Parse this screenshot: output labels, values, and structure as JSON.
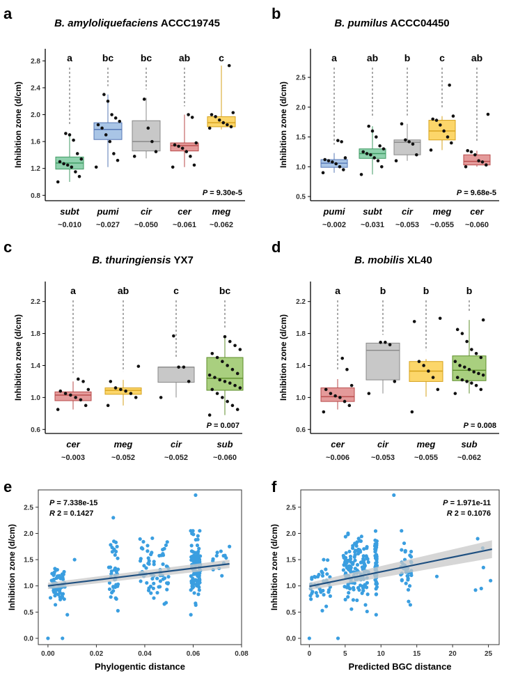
{
  "chart_data": [
    {
      "panel": "a",
      "type": "box",
      "title_italic": "B. amyloliquefaciens",
      "title_plain": "ACCC19745",
      "ylabel": "Inhibition zone (d/cm)",
      "ylim": [
        0.72,
        2.98
      ],
      "yticks": [
        0.8,
        1.2,
        1.6,
        2.0,
        2.4,
        2.8
      ],
      "ytick_labels": [
        "0.8",
        "1.2",
        "1.6",
        "2.0",
        "2.4",
        "2.8"
      ],
      "p_label": "P",
      "p_value": " = 9.30e-5",
      "series": [
        {
          "name": "subt",
          "distance": "~0.010",
          "letter": "a",
          "color": "#8fd1ad",
          "line": "#3f9a63",
          "q1": 1.19,
          "median": 1.28,
          "q3": 1.37,
          "wlo": 1.0,
          "whi": 1.72,
          "points": [
            1.0,
            1.08,
            1.15,
            1.22,
            1.25,
            1.27,
            1.3,
            1.34,
            1.42,
            1.62,
            1.7,
            1.72
          ]
        },
        {
          "name": "pumi",
          "distance": "~0.027",
          "letter": "bc",
          "color": "#a9c5e6",
          "line": "#5577b6",
          "q1": 1.63,
          "median": 1.78,
          "q3": 1.88,
          "wlo": 1.22,
          "whi": 2.3,
          "points": [
            1.22,
            1.32,
            1.42,
            1.6,
            1.7,
            1.8,
            1.85,
            1.9,
            1.95,
            2.0,
            2.2,
            2.3
          ]
        },
        {
          "name": "cir",
          "distance": "~0.050",
          "letter": "bc",
          "color": "#c8c8c8",
          "line": "#888888",
          "q1": 1.46,
          "median": 1.6,
          "q3": 1.91,
          "wlo": 1.35,
          "whi": 2.25,
          "points": [
            1.38,
            1.45,
            1.6,
            1.8,
            2.23
          ]
        },
        {
          "name": "cer",
          "distance": "~0.061",
          "letter": "ab",
          "color": "#e49a9a",
          "line": "#b84a4a",
          "q1": 1.46,
          "median": 1.54,
          "q3": 1.58,
          "wlo": 1.22,
          "whi": 2.0,
          "points": [
            1.22,
            1.25,
            1.38,
            1.45,
            1.5,
            1.53,
            1.55,
            1.58,
            1.96,
            2.0
          ]
        },
        {
          "name": "meg",
          "distance": "~0.062",
          "letter": "c",
          "color": "#fcd66a",
          "line": "#d6a11a",
          "q1": 1.82,
          "median": 1.88,
          "q3": 1.97,
          "wlo": 1.78,
          "whi": 2.73,
          "points": [
            1.8,
            1.82,
            1.85,
            1.88,
            1.92,
            1.97,
            2.0,
            2.03,
            2.73
          ]
        }
      ]
    },
    {
      "panel": "b",
      "type": "box",
      "title_italic": "B. pumilus",
      "title_plain": "ACCC04450",
      "ylabel": "Inhibition zone (d/cm)",
      "ylim": [
        0.43,
        2.98
      ],
      "yticks": [
        0.5,
        1.0,
        1.5,
        2.0,
        2.5
      ],
      "ytick_labels": [
        "0.5",
        "1.0",
        "1.5",
        "2.0",
        "2.5"
      ],
      "p_label": "P",
      "p_value": " = 9.68e-5",
      "series": [
        {
          "name": "pumi",
          "distance": "~0.002",
          "letter": "a",
          "color": "#a9c5e6",
          "line": "#5577b6",
          "q1": 0.99,
          "median": 1.06,
          "q3": 1.12,
          "wlo": 0.9,
          "whi": 1.23,
          "points": [
            0.9,
            0.95,
            1.0,
            1.05,
            1.08,
            1.1,
            1.12,
            1.15,
            1.42,
            1.44
          ]
        },
        {
          "name": "subt",
          "distance": "~0.031",
          "letter": "ab",
          "color": "#8fd1ad",
          "line": "#3f9a63",
          "q1": 1.14,
          "median": 1.22,
          "q3": 1.3,
          "wlo": 0.87,
          "whi": 1.68,
          "points": [
            0.87,
            1.0,
            1.1,
            1.15,
            1.2,
            1.22,
            1.25,
            1.3,
            1.35,
            1.5,
            1.6,
            1.68
          ]
        },
        {
          "name": "cir",
          "distance": "~0.053",
          "letter": "b",
          "color": "#c8c8c8",
          "line": "#888888",
          "q1": 1.2,
          "median": 1.41,
          "q3": 1.45,
          "wlo": 1.1,
          "whi": 1.72,
          "points": [
            1.1,
            1.2,
            1.38,
            1.42,
            1.45,
            1.72
          ]
        },
        {
          "name": "meg",
          "distance": "~0.055",
          "letter": "c",
          "color": "#fcd66a",
          "line": "#d6a11a",
          "q1": 1.45,
          "median": 1.6,
          "q3": 1.78,
          "wlo": 1.28,
          "whi": 1.85,
          "points": [
            1.28,
            1.4,
            1.5,
            1.6,
            1.7,
            1.78,
            1.8,
            1.85,
            2.37
          ]
        },
        {
          "name": "cer",
          "distance": "~0.060",
          "letter": "ab",
          "color": "#e49a9a",
          "line": "#b84a4a",
          "q1": 1.03,
          "median": 1.09,
          "q3": 1.2,
          "wlo": 1.0,
          "whi": 1.27,
          "points": [
            1.0,
            1.03,
            1.08,
            1.1,
            1.2,
            1.25,
            1.27,
            1.88
          ]
        }
      ]
    },
    {
      "panel": "c",
      "type": "box",
      "title_italic": "B. thuringiensis",
      "title_plain": "YX7",
      "ylabel": "Inhibition zone (d/cm)",
      "ylim": [
        0.55,
        2.45
      ],
      "yticks": [
        0.6,
        1.0,
        1.4,
        1.8,
        2.2
      ],
      "ytick_labels": [
        "0.6",
        "1.0",
        "1.4",
        "1.8",
        "2.2"
      ],
      "p_label": "P",
      "p_value": " = 0.007",
      "series": [
        {
          "name": "cer",
          "distance": "~0.003",
          "letter": "a",
          "color": "#e49a9a",
          "line": "#b84a4a",
          "q1": 0.96,
          "median": 1.03,
          "q3": 1.07,
          "wlo": 0.85,
          "whi": 1.2,
          "points": [
            0.85,
            0.9,
            0.97,
            1.0,
            1.03,
            1.05,
            1.08,
            1.1,
            1.2,
            1.23
          ]
        },
        {
          "name": "meg",
          "distance": "~0.052",
          "letter": "ab",
          "color": "#fcd66a",
          "line": "#d6a11a",
          "q1": 1.04,
          "median": 1.09,
          "q3": 1.12,
          "wlo": 0.9,
          "whi": 1.22,
          "points": [
            0.9,
            1.0,
            1.05,
            1.08,
            1.1,
            1.12,
            1.2,
            1.39
          ]
        },
        {
          "name": "cir",
          "distance": "~0.052",
          "letter": "c",
          "color": "#c8c8c8",
          "line": "#888888",
          "q1": 1.19,
          "median": 1.38,
          "q3": 1.38,
          "wlo": 1.0,
          "whi": 1.38,
          "points": [
            1.0,
            1.2,
            1.38,
            1.38,
            1.77
          ]
        },
        {
          "name": "sub",
          "distance": "~0.060",
          "letter": "bc",
          "color": "#a9cf7f",
          "line": "#5d8e2a",
          "q1": 1.09,
          "median": 1.24,
          "q3": 1.5,
          "wlo": 0.78,
          "whi": 1.76,
          "points": [
            0.78,
            0.85,
            0.9,
            0.95,
            1.0,
            1.05,
            1.1,
            1.12,
            1.15,
            1.18,
            1.2,
            1.22,
            1.25,
            1.28,
            1.3,
            1.35,
            1.4,
            1.45,
            1.5,
            1.55,
            1.6,
            1.65,
            1.7,
            1.76
          ]
        }
      ]
    },
    {
      "panel": "d",
      "type": "box",
      "title_italic": "B. mobilis",
      "title_plain": "XL40",
      "ylabel": "Inhibition zone (d/cm)",
      "ylim": [
        0.55,
        2.45
      ],
      "yticks": [
        0.6,
        1.0,
        1.4,
        1.8,
        2.2
      ],
      "ytick_labels": [
        "0.6",
        "1.0",
        "1.4",
        "1.8",
        "2.2"
      ],
      "p_label": "P",
      "p_value": " = 0.008",
      "series": [
        {
          "name": "cer",
          "distance": "~0.006",
          "letter": "a",
          "color": "#e49a9a",
          "line": "#b84a4a",
          "q1": 0.95,
          "median": 1.01,
          "q3": 1.12,
          "wlo": 0.85,
          "whi": 1.23,
          "points": [
            0.82,
            0.9,
            0.95,
            1.0,
            1.02,
            1.05,
            1.1,
            1.15,
            1.35,
            1.49
          ]
        },
        {
          "name": "cir",
          "distance": "~0.053",
          "letter": "b",
          "color": "#c8c8c8",
          "line": "#888888",
          "q1": 1.22,
          "median": 1.59,
          "q3": 1.68,
          "wlo": 1.05,
          "whi": 1.68,
          "points": [
            1.05,
            1.2,
            1.66,
            1.69,
            1.69
          ]
        },
        {
          "name": "meg",
          "distance": "~0.055",
          "letter": "b",
          "color": "#fcd66a",
          "line": "#d6a11a",
          "q1": 1.2,
          "median": 1.33,
          "q3": 1.45,
          "wlo": 1.01,
          "whi": 1.48,
          "points": [
            0.82,
            1.1,
            1.25,
            1.33,
            1.4,
            1.45,
            1.95,
            1.99
          ]
        },
        {
          "name": "sub",
          "distance": "~0.062",
          "letter": "b",
          "color": "#a9cf7f",
          "line": "#5d8e2a",
          "q1": 1.21,
          "median": 1.34,
          "q3": 1.52,
          "wlo": 1.05,
          "whi": 1.97,
          "points": [
            1.05,
            1.1,
            1.15,
            1.18,
            1.2,
            1.22,
            1.25,
            1.28,
            1.3,
            1.32,
            1.35,
            1.38,
            1.4,
            1.45,
            1.5,
            1.55,
            1.6,
            1.7,
            1.8,
            1.85,
            1.97
          ]
        }
      ]
    },
    {
      "panel": "e",
      "type": "scatter",
      "xlabel": "Phylogentic distance",
      "ylabel": "Inhibition zone (d/cm)",
      "xlim": [
        -0.004,
        0.08
      ],
      "ylim": [
        -0.12,
        2.83
      ],
      "xticks": [
        0.0,
        0.02,
        0.04,
        0.06,
        0.08
      ],
      "xtick_labels": [
        "0.00",
        "0.02",
        "0.04",
        "0.06",
        "0.08"
      ],
      "yticks": [
        0.0,
        0.5,
        1.0,
        1.5,
        2.0,
        2.5
      ],
      "ytick_labels": [
        "0.0",
        "0.5",
        "1.0",
        "1.5",
        "2.0",
        "2.5"
      ],
      "stat_p_label": "P",
      "stat_p_value": " = 7.338e-15",
      "stat_r_label": "R",
      "stat_r_value": " 2 = 0.1427",
      "point_color": "#3a9ee0",
      "fit_line": {
        "x0": 0.0,
        "y0": 1.0,
        "x1": 0.075,
        "y1": 1.42,
        "color": "#1e4f80"
      },
      "ci_band": {
        "x0": 0.0,
        "lo0": 0.94,
        "hi0": 1.06,
        "x1": 0.075,
        "lo1": 1.34,
        "hi1": 1.5,
        "color": "#c8c8c8"
      },
      "clusters": [
        {
          "center": 0.004,
          "spread": 0.006,
          "n": 60,
          "mean": 1.05,
          "sd": 0.17
        },
        {
          "center": 0.027,
          "spread": 0.004,
          "n": 38,
          "mean": 1.25,
          "sd": 0.32
        },
        {
          "center": 0.044,
          "spread": 0.012,
          "n": 70,
          "mean": 1.3,
          "sd": 0.28
        },
        {
          "center": 0.061,
          "spread": 0.004,
          "n": 110,
          "mean": 1.35,
          "sd": 0.28
        },
        {
          "center": 0.071,
          "spread": 0.006,
          "n": 12,
          "mean": 1.4,
          "sd": 0.22
        }
      ],
      "extra_points": [
        [
          0.0,
          0.0
        ],
        [
          0.006,
          0.0
        ],
        [
          0.008,
          0.45
        ],
        [
          0.061,
          2.73
        ],
        [
          0.027,
          2.3
        ],
        [
          0.011,
          1.5
        ],
        [
          0.075,
          1.75
        ]
      ]
    },
    {
      "panel": "f",
      "type": "scatter",
      "xlabel": "Predicted BGC distance",
      "ylabel": "Inhibition zone (d/cm)",
      "xlim": [
        -1.2,
        26.5
      ],
      "ylim": [
        -0.12,
        2.83
      ],
      "xticks": [
        0,
        5,
        10,
        15,
        20,
        25
      ],
      "xtick_labels": [
        "0",
        "5",
        "10",
        "15",
        "20",
        "25"
      ],
      "yticks": [
        0.0,
        0.5,
        1.0,
        1.5,
        2.0,
        2.5
      ],
      "ytick_labels": [
        "0.0",
        "0.5",
        "1.0",
        "1.5",
        "2.0",
        "2.5"
      ],
      "stat_p_label": "P",
      "stat_p_value": " = 1.971e-11",
      "stat_r_label": "R",
      "stat_r_value": " 2 = 0.1076",
      "point_color": "#3a9ee0",
      "fit_line": {
        "x0": 0,
        "y0": 0.99,
        "x1": 25.5,
        "y1": 1.7,
        "color": "#1e4f80"
      },
      "ci_band": {
        "x0": 0,
        "lo0": 0.92,
        "hi0": 1.06,
        "x1": 25.5,
        "lo1": 1.53,
        "hi1": 1.87,
        "color": "#c8c8c8"
      },
      "clusters": [
        {
          "center": 1.5,
          "spread": 3.0,
          "n": 40,
          "mean": 1.02,
          "sd": 0.17
        },
        {
          "center": 6.5,
          "spread": 3.5,
          "n": 150,
          "mean": 1.28,
          "sd": 0.3
        },
        {
          "center": 9.3,
          "spread": 0.3,
          "n": 55,
          "mean": 1.35,
          "sd": 0.33
        },
        {
          "center": 13.5,
          "spread": 1.6,
          "n": 40,
          "mean": 1.3,
          "sd": 0.25
        }
      ],
      "extra_points": [
        [
          0,
          0.0
        ],
        [
          4,
          0.0
        ],
        [
          24,
          0.95
        ],
        [
          23.2,
          0.92
        ],
        [
          23.5,
          1.9
        ],
        [
          25.3,
          1.1
        ],
        [
          24.3,
          1.35
        ],
        [
          24.2,
          1.72
        ],
        [
          11.8,
          2.73
        ],
        [
          2.0,
          1.5
        ],
        [
          17.8,
          1.18
        ]
      ]
    }
  ]
}
